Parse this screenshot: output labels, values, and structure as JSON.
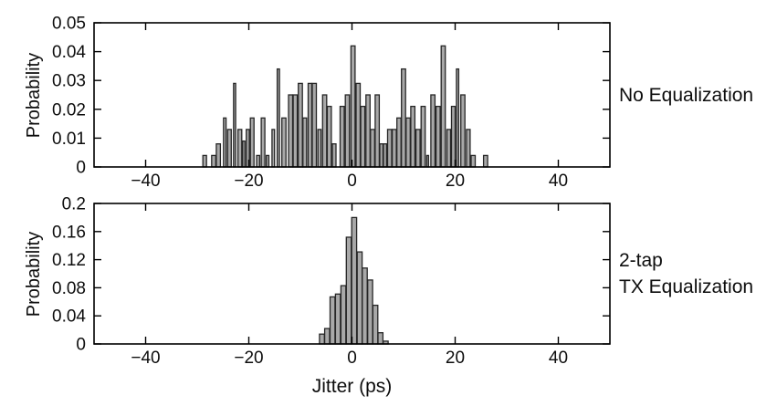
{
  "styles": {
    "background": "#ffffff",
    "bar_fill": "#a8a8a8",
    "bar_edge": "#262626",
    "axis_color": "#000000",
    "text_color": "#0d0d0d"
  },
  "xlabel": "Jitter (ps)",
  "chart_data": [
    {
      "type": "bar",
      "name": "jitter-histogram-no-equalization",
      "title": "No Equalization",
      "right_label_lines": [
        "No Equalization"
      ],
      "ylabel": "Probability",
      "xlabel": "",
      "xlim": [
        -50,
        50
      ],
      "ylim": [
        0,
        0.05
      ],
      "x_ticks": [
        -40,
        -20,
        0,
        20,
        40
      ],
      "x_tick_labels": [
        "−40",
        "−20",
        "0",
        "20",
        "40"
      ],
      "y_ticks": [
        0,
        0.01,
        0.02,
        0.03,
        0.04,
        0.05
      ],
      "y_tick_labels": [
        "0",
        "0.01",
        "0.02",
        "0.03",
        "0.04",
        "0.05"
      ],
      "grid": false,
      "bar_format": "[x_left_ps, width_ps, probability]",
      "bars": [
        [
          -28.9,
          0.7,
          0.004
        ],
        [
          -27.2,
          0.8,
          0.004
        ],
        [
          -26.3,
          0.8,
          0.008
        ],
        [
          -24.9,
          0.5,
          0.017
        ],
        [
          -24.1,
          0.7,
          0.013
        ],
        [
          -22.95,
          0.4,
          0.029
        ],
        [
          -22.1,
          0.75,
          0.013
        ],
        [
          -21.2,
          0.45,
          0.009
        ],
        [
          -20.5,
          0.6,
          0.013
        ],
        [
          -19.7,
          0.7,
          0.017
        ],
        [
          -18.5,
          0.6,
          0.004
        ],
        [
          -17.6,
          0.7,
          0.017
        ],
        [
          -16.6,
          0.5,
          0.004
        ],
        [
          -15.5,
          0.5,
          0.013
        ],
        [
          -14.5,
          0.45,
          0.034
        ],
        [
          -13.6,
          0.8,
          0.017
        ],
        [
          -12.3,
          0.8,
          0.025
        ],
        [
          -11.4,
          0.8,
          0.025
        ],
        [
          -10.4,
          0.8,
          0.029
        ],
        [
          -9.5,
          0.7,
          0.017
        ],
        [
          -8.5,
          0.7,
          0.029
        ],
        [
          -7.7,
          0.8,
          0.029
        ],
        [
          -6.6,
          0.6,
          0.013
        ],
        [
          -5.7,
          0.8,
          0.025
        ],
        [
          -4.8,
          0.8,
          0.021
        ],
        [
          -3.8,
          0.7,
          0.008
        ],
        [
          -2.3,
          0.8,
          0.021
        ],
        [
          -1.3,
          0.8,
          0.025
        ],
        [
          -0.2,
          0.8,
          0.042
        ],
        [
          0.8,
          0.8,
          0.029
        ],
        [
          1.7,
          0.8,
          0.021
        ],
        [
          2.7,
          0.8,
          0.025
        ],
        [
          3.6,
          0.8,
          0.013
        ],
        [
          4.5,
          0.8,
          0.025
        ],
        [
          5.4,
          0.6,
          0.008
        ],
        [
          6.1,
          0.6,
          0.008
        ],
        [
          6.9,
          0.8,
          0.013
        ],
        [
          7.8,
          0.8,
          0.013
        ],
        [
          8.7,
          0.8,
          0.017
        ],
        [
          9.6,
          0.8,
          0.034
        ],
        [
          10.5,
          0.8,
          0.017
        ],
        [
          11.4,
          0.8,
          0.021
        ],
        [
          12.4,
          0.8,
          0.013
        ],
        [
          13.4,
          0.8,
          0.021
        ],
        [
          14.5,
          0.35,
          0.004
        ],
        [
          15.3,
          0.8,
          0.025
        ],
        [
          16.3,
          0.8,
          0.021
        ],
        [
          17.3,
          0.8,
          0.042
        ],
        [
          18.4,
          0.7,
          0.013
        ],
        [
          19.3,
          0.7,
          0.021
        ],
        [
          20.25,
          0.45,
          0.034
        ],
        [
          21.1,
          0.8,
          0.025
        ],
        [
          22.2,
          0.7,
          0.013
        ],
        [
          23.1,
          0.8,
          0.004
        ],
        [
          25.5,
          0.8,
          0.004
        ]
      ]
    },
    {
      "type": "bar",
      "name": "jitter-histogram-tx-equalization",
      "title": "2-tap TX Equalization",
      "right_label_lines": [
        "2-tap",
        "TX Equalization"
      ],
      "ylabel": "Probability",
      "xlabel": "Jitter (ps)",
      "xlim": [
        -50,
        50
      ],
      "ylim": [
        0,
        0.2
      ],
      "x_ticks": [
        -40,
        -20,
        0,
        20,
        40
      ],
      "x_tick_labels": [
        "−40",
        "−20",
        "0",
        "20",
        "40"
      ],
      "y_ticks": [
        0,
        0.04,
        0.08,
        0.12,
        0.16,
        0.2
      ],
      "y_tick_labels": [
        "0",
        "0.04",
        "0.08",
        "0.12",
        "0.16",
        "0.2"
      ],
      "grid": false,
      "bar_format": "[x_left_ps, width_ps, probability]",
      "bars": [
        [
          -6.3,
          0.95,
          0.014
        ],
        [
          -5.3,
          0.95,
          0.022
        ],
        [
          -4.25,
          0.95,
          0.067
        ],
        [
          -3.2,
          0.95,
          0.071
        ],
        [
          -2.15,
          0.95,
          0.083
        ],
        [
          -1.1,
          0.95,
          0.152
        ],
        [
          -0.05,
          0.95,
          0.18
        ],
        [
          1.0,
          0.95,
          0.131
        ],
        [
          2.0,
          0.95,
          0.108
        ],
        [
          3.05,
          0.95,
          0.091
        ],
        [
          4.05,
          0.95,
          0.055
        ],
        [
          5.05,
          0.95,
          0.016
        ],
        [
          6.05,
          0.95,
          0.004
        ]
      ]
    }
  ]
}
